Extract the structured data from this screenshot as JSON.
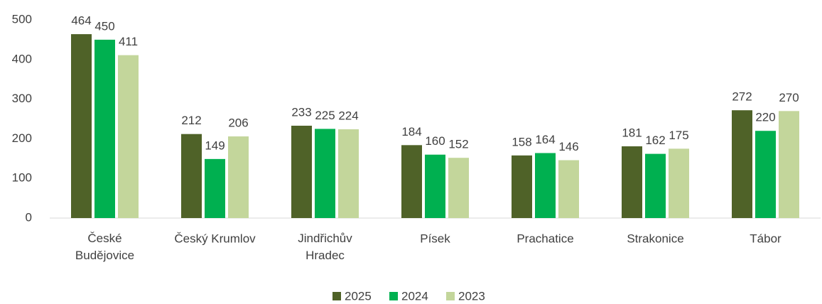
{
  "chart_data": {
    "type": "bar",
    "categories": [
      "České Budějovice",
      "Český Krumlov",
      "Jindřichův Hradec",
      "Písek",
      "Prachatice",
      "Strakonice",
      "Tábor"
    ],
    "series": [
      {
        "name": "2025",
        "color": "#4f6228",
        "values": [
          464,
          212,
          233,
          184,
          158,
          181,
          272
        ]
      },
      {
        "name": "2024",
        "color": "#00b050",
        "values": [
          450,
          149,
          225,
          160,
          164,
          162,
          220
        ]
      },
      {
        "name": "2023",
        "color": "#c3d69b",
        "values": [
          411,
          206,
          224,
          152,
          146,
          175,
          270
        ]
      }
    ],
    "ylim": [
      0,
      500
    ],
    "yticks": [
      0,
      100,
      200,
      300,
      400,
      500
    ],
    "grid": false,
    "legend": "bottom"
  }
}
